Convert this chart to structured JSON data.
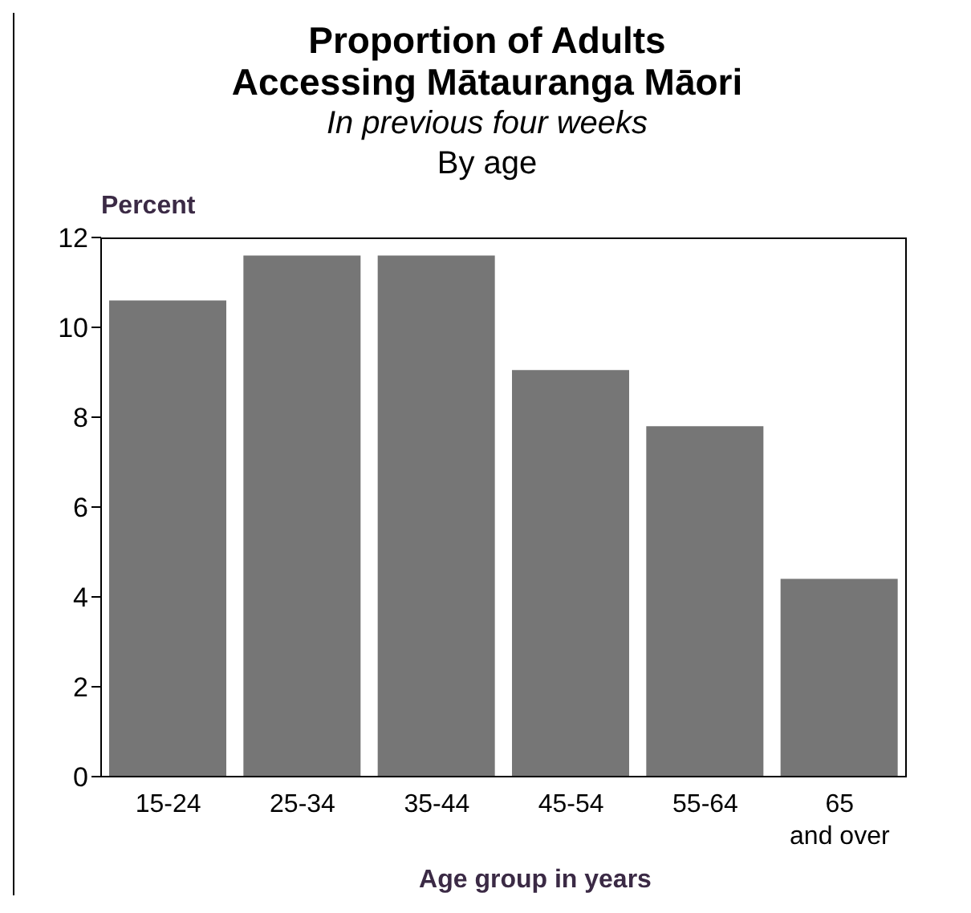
{
  "chart_data": {
    "type": "bar",
    "title": "Proportion of Adults Accessing Mātauranga Māori",
    "subtitle": "In previous four weeks",
    "annotations": [
      "By age"
    ],
    "ylabel": "Percent",
    "xlabel": "Age group in years",
    "categories": [
      "15-24",
      "25-34",
      "35-44",
      "45-54",
      "55-64",
      "65 and over"
    ],
    "values": [
      10.6,
      11.6,
      11.6,
      9.05,
      7.8,
      4.4
    ],
    "color": "#767676",
    "ylim": [
      0,
      12
    ],
    "yticks": [
      0,
      2,
      4,
      6,
      8,
      10,
      12
    ],
    "grid": false
  }
}
